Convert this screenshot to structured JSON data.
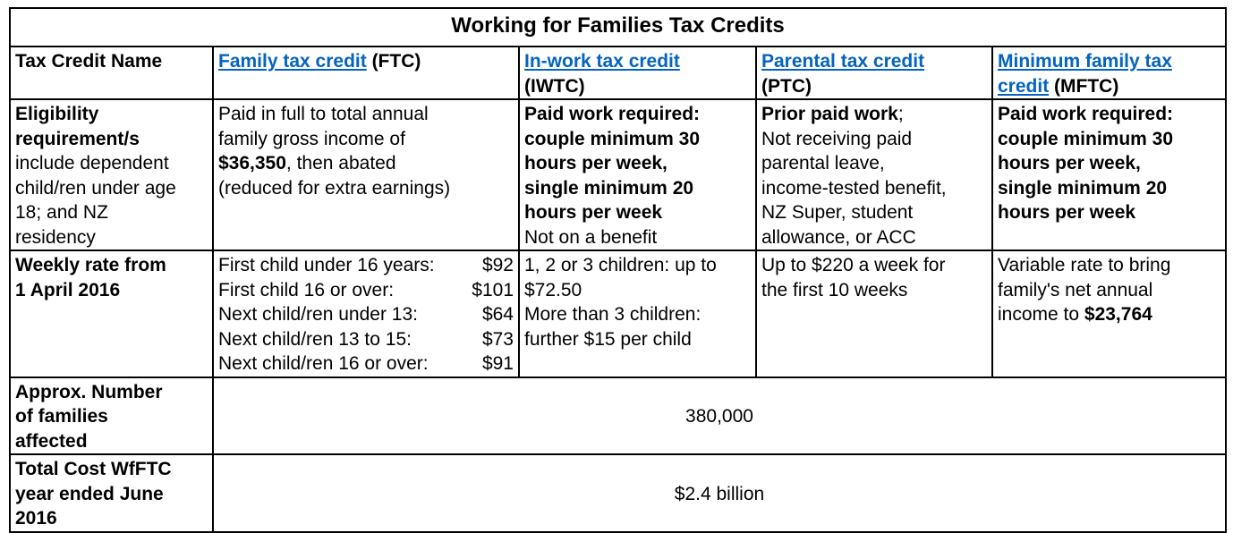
{
  "table": {
    "title": "Working for Families Tax Credits",
    "header": {
      "row_label": "Tax Credit Name",
      "ftc": {
        "link": "Family tax credit",
        "abbr": " (FTC)"
      },
      "iwtc": {
        "link": "In-work tax credit",
        "abbr": "(IWTC)"
      },
      "ptc": {
        "link": "Parental tax credit",
        "abbr": "(PTC)"
      },
      "mftc": {
        "link1": "Minimum family tax",
        "link2": "credit",
        "abbr": " (MFTC)"
      }
    },
    "eligibility": {
      "label_bold1": "Eligibility",
      "label_bold2": "requirement/s",
      "label_l3": "include dependent",
      "label_l4": "child/ren under age",
      "label_l5": "18; and  NZ",
      "label_l6": "residency",
      "ftc_l1": "Paid in full to total annual",
      "ftc_l2": "family gross income of",
      "ftc_amount": "$36,350",
      "ftc_l3_rest": ",  then abated",
      "ftc_l4": "(reduced for extra earnings)",
      "iwtc_b1": "Paid work required:",
      "iwtc_b2": "couple minimum 30",
      "iwtc_b3": "hours per week,",
      "iwtc_b4": "single minimum 20",
      "iwtc_b5": "hours per week",
      "iwtc_l6": "Not on a benefit",
      "ptc_bold": "Prior paid work",
      "ptc_semi": ";",
      "ptc_l2": "Not receiving paid",
      "ptc_l3": "parental leave,",
      "ptc_l4": "income-tested benefit,",
      "ptc_l5": "NZ Super, student",
      "ptc_l6": "allowance, or ACC",
      "mftc_b1": "Paid work required:",
      "mftc_b2": "couple minimum 30",
      "mftc_b3": "hours per week,",
      "mftc_b4": "single minimum 20",
      "mftc_b5": "hours per week"
    },
    "weekly": {
      "label1": "Weekly rate from",
      "label2": "1 April 2016",
      "ftc_rows": [
        {
          "label": "First child under 16 years:",
          "value": "$92"
        },
        {
          "label": "First child 16 or over:",
          "value": "$101"
        },
        {
          "label": "Next child/ren under 13:",
          "value": "$64"
        },
        {
          "label": "Next child/ren 13 to 15:",
          "value": "$73"
        },
        {
          "label": "Next child/ren 16 or over:",
          "value": "$91"
        }
      ],
      "iwtc_l1": "1, 2 or 3 children: up to",
      "iwtc_l2": "$72.50",
      "iwtc_l3": "More than 3 children:",
      "iwtc_l4": "further $15 per child",
      "ptc_l1": "Up to $220 a week for",
      "ptc_l2": "the first 10 weeks",
      "mftc_l1": "Variable rate to bring",
      "mftc_l2": "family's net annual",
      "mftc_l3_pre": "income to ",
      "mftc_amount": "$23,764"
    },
    "families": {
      "label1": "Approx. Number",
      "label2": "of families",
      "label3": "affected",
      "value": "380,000"
    },
    "cost": {
      "label1": "Total Cost WfFTC",
      "label2": "year ended  June",
      "label3": "2016",
      "value": "$2.4 billion"
    },
    "link_color": "#0563c1"
  }
}
